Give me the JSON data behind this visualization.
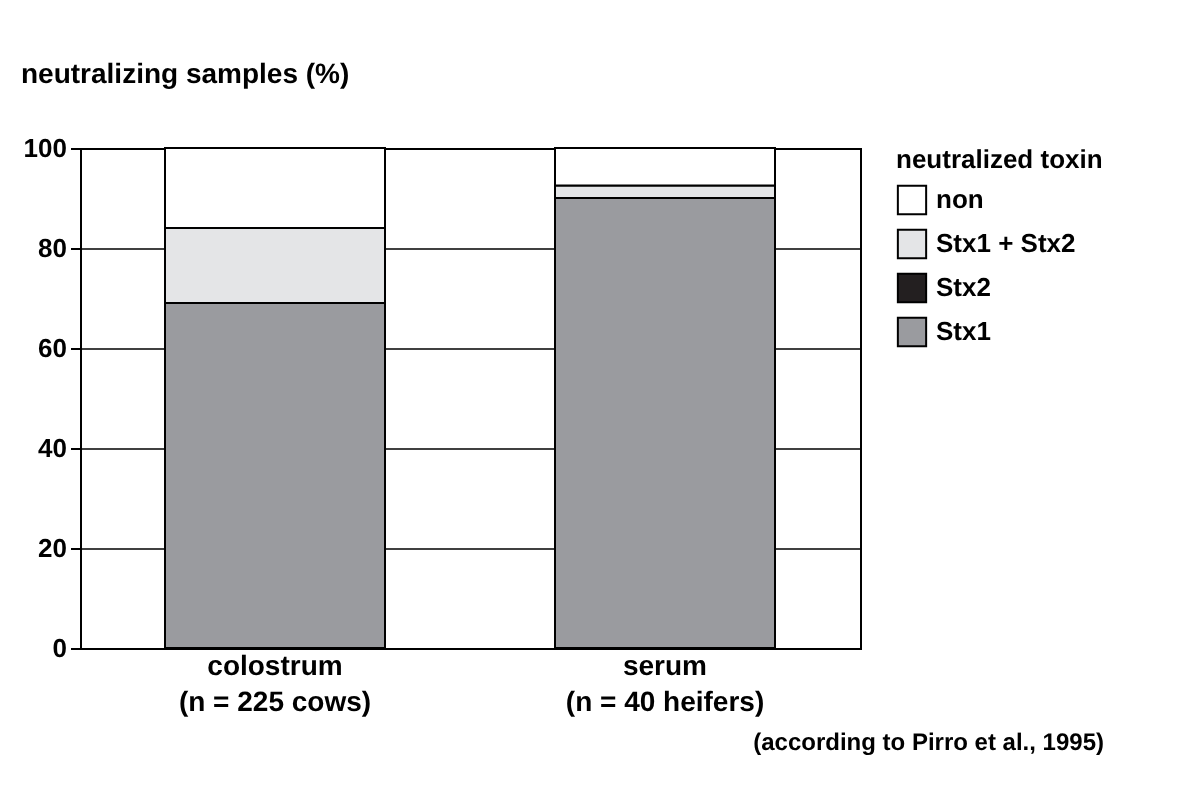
{
  "chart_data": {
    "type": "bar",
    "stacked": true,
    "ylabel": "neutralizing samples (%)",
    "legend_title": "neutralized toxin",
    "categories": [
      "colostrum\n(n = 225 cows)",
      "serum\n(n = 40 heifers)"
    ],
    "series": [
      {
        "name": "Stx1",
        "color": "#9a9b9f",
        "values": [
          69,
          90
        ]
      },
      {
        "name": "Stx2",
        "color": "#231f20",
        "values": [
          0,
          0
        ]
      },
      {
        "name": "Stx1 + Stx2",
        "color": "#e4e5e7",
        "values": [
          15,
          2.5
        ]
      },
      {
        "name": "non",
        "color": "#ffffff",
        "values": [
          16,
          7.5
        ]
      }
    ],
    "ylim": [
      0,
      100
    ],
    "yticks": [
      0,
      20,
      40,
      60,
      80,
      100
    ],
    "grid": "y",
    "legend": "right",
    "annotations": [
      "(according to Pirro et al., 1995)"
    ]
  }
}
